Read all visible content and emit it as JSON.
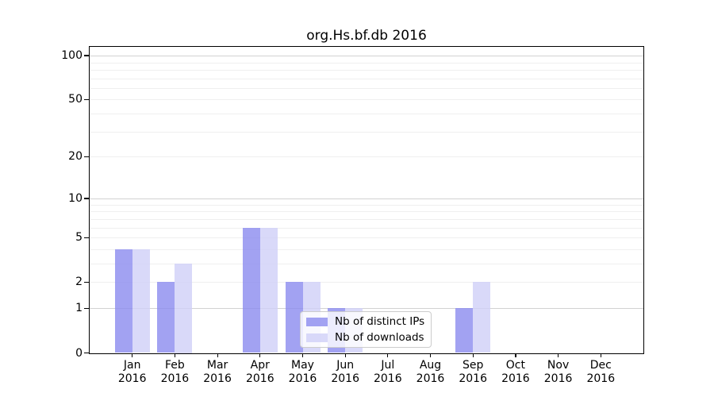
{
  "title": "org.Hs.bf.db 2016",
  "colors": {
    "bar_ips": "#8b8bef",
    "bar_downloads": "#d0d0f7",
    "bar_alpha": 0.8,
    "grid_minor": "#efefef",
    "grid_major": "#d2d2d2",
    "axis": "#000000",
    "legend_border": "#cccccc"
  },
  "chart_data": {
    "type": "bar",
    "title": "org.Hs.bf.db 2016",
    "categories": [
      "Jan 2016",
      "Feb 2016",
      "Mar 2016",
      "Apr 2016",
      "May 2016",
      "Jun 2016",
      "Jul 2016",
      "Aug 2016",
      "Sep 2016",
      "Oct 2016",
      "Nov 2016",
      "Dec 2016"
    ],
    "series": [
      {
        "name": "Nb of distinct IPs",
        "values": [
          4,
          2,
          0,
          6,
          2,
          1,
          0,
          0,
          1,
          0,
          0,
          0
        ]
      },
      {
        "name": "Nb of downloads",
        "values": [
          4,
          3,
          0,
          6,
          2,
          1,
          0,
          0,
          2,
          0,
          0,
          0
        ]
      }
    ],
    "xlabel": "",
    "ylabel": "",
    "yscale": "log1p",
    "yticks": [
      0,
      1,
      2,
      5,
      10,
      20,
      50,
      100
    ],
    "ylim": [
      0,
      100
    ],
    "grid": true,
    "legend_position": "lower-center"
  }
}
